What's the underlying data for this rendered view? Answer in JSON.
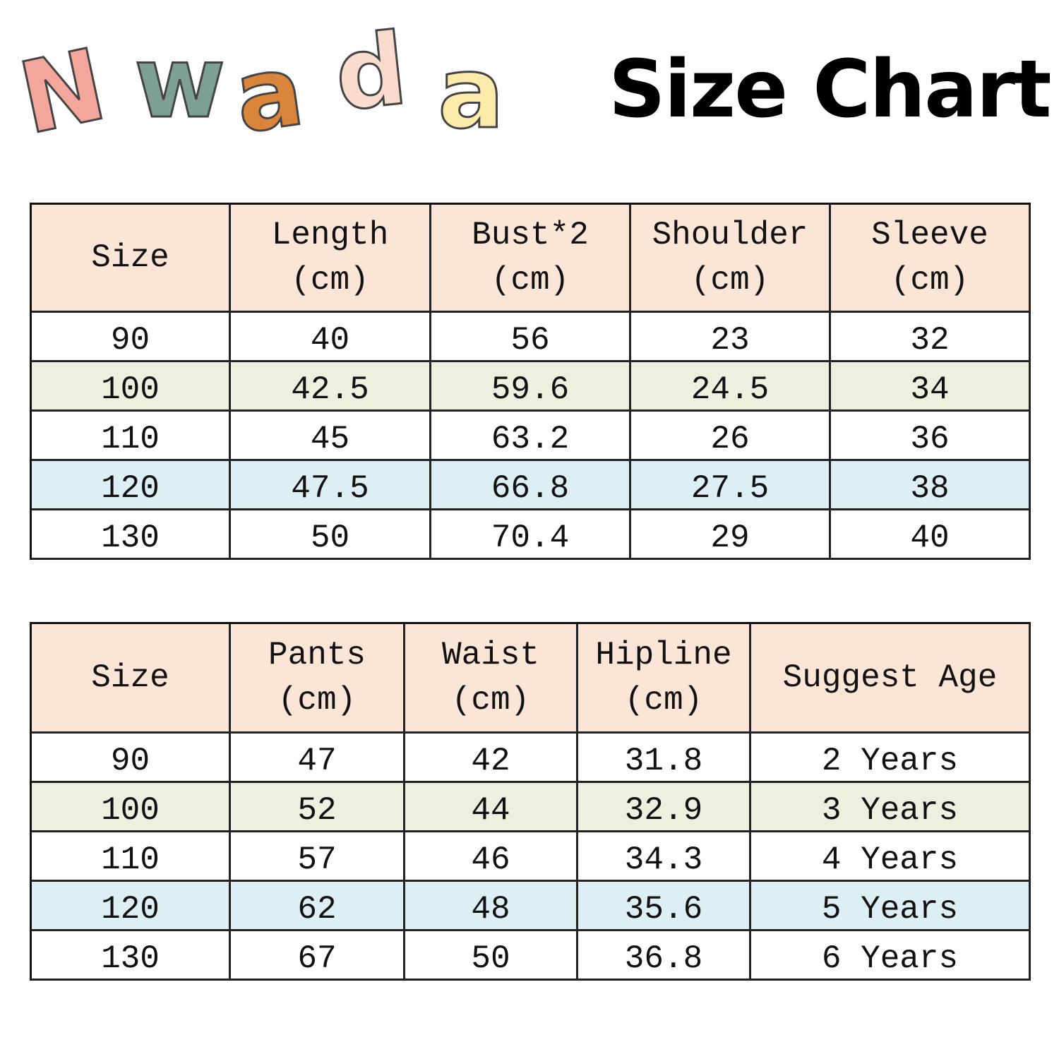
{
  "logo": {
    "letters": [
      "N",
      "w",
      "a",
      "d",
      "a"
    ]
  },
  "title": "Size Chart",
  "tables": [
    {
      "header": [
        [
          "Size"
        ],
        [
          "Length",
          "(cm)"
        ],
        [
          "Bust*2",
          "(cm)"
        ],
        [
          "Shoulder",
          "(cm)"
        ],
        [
          "Sleeve",
          "(cm)"
        ]
      ],
      "rows": [
        [
          90,
          40,
          56,
          23,
          32
        ],
        [
          100,
          42.5,
          59.6,
          24.5,
          34
        ],
        [
          110,
          45,
          63.2,
          26,
          36
        ],
        [
          120,
          47.5,
          66.8,
          27.5,
          38
        ],
        [
          130,
          50,
          70.4,
          29,
          40
        ]
      ]
    },
    {
      "header": [
        [
          "Size"
        ],
        [
          "Pants",
          "(cm)"
        ],
        [
          "Waist",
          "(cm)"
        ],
        [
          "Hipline",
          "(cm)"
        ],
        [
          "Suggest Age"
        ]
      ],
      "rows": [
        [
          90,
          47,
          42,
          31.8,
          "2 Years"
        ],
        [
          100,
          52,
          44,
          32.9,
          "3 Years"
        ],
        [
          110,
          57,
          46,
          34.3,
          "4 Years"
        ],
        [
          120,
          62,
          48,
          35.6,
          "5 Years"
        ],
        [
          130,
          67,
          50,
          36.8,
          "6 Years"
        ]
      ]
    }
  ]
}
